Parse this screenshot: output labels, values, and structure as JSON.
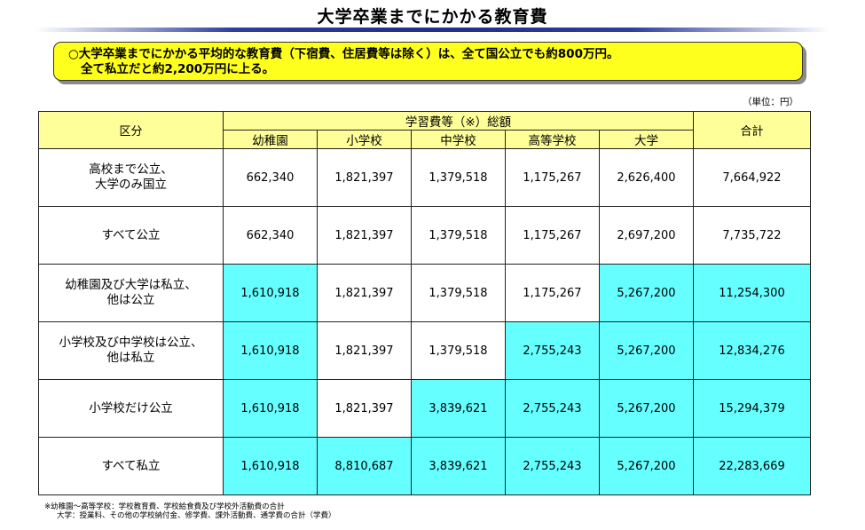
{
  "title": "大学卒業までにかかる教育費",
  "summary": {
    "line1": "○大学卒業までにかかる平均的な教育費（下宿費、住居費等は除く）は、全て国公立でも約800万円。",
    "line2": "全て私立だと約2,200万円に上る。"
  },
  "unit": "（単位：円）",
  "table": {
    "header_category": "区分",
    "header_group": "学習費等（※）総額",
    "header_total": "合計",
    "columns": [
      "幼稚園",
      "小学校",
      "中学校",
      "高等学校",
      "大学"
    ],
    "rows": [
      {
        "label": "高校まで公立、\n大学のみ国立",
        "values": [
          "662,340",
          "1,821,397",
          "1,379,518",
          "1,175,267",
          "2,626,400"
        ],
        "total": "7,664,922"
      },
      {
        "label": "すべて公立",
        "values": [
          "662,340",
          "1,821,397",
          "1,379,518",
          "1,175,267",
          "2,697,200"
        ],
        "total": "7,735,722"
      },
      {
        "label": "幼稚園及び大学は私立、\n他は公立",
        "values": [
          "1,610,918",
          "1,821,397",
          "1,379,518",
          "1,175,267",
          "5,267,200"
        ],
        "total": "11,254,300"
      },
      {
        "label": "小学校及び中学校は公立、\n他は私立",
        "values": [
          "1,610,918",
          "1,821,397",
          "1,379,518",
          "2,755,243",
          "5,267,200"
        ],
        "total": "12,834,276"
      },
      {
        "label": "小学校だけ公立",
        "values": [
          "1,610,918",
          "1,821,397",
          "3,839,621",
          "2,755,243",
          "5,267,200"
        ],
        "total": "15,294,379"
      },
      {
        "label": "すべて私立",
        "values": [
          "1,610,918",
          "8,810,687",
          "3,839,621",
          "2,755,243",
          "5,267,200"
        ],
        "total": "22,283,669"
      }
    ],
    "highlight": [
      [
        false,
        false,
        false,
        false,
        false,
        false
      ],
      [
        false,
        false,
        false,
        false,
        false,
        false
      ],
      [
        true,
        false,
        false,
        false,
        true,
        true
      ],
      [
        true,
        false,
        false,
        true,
        true,
        true
      ],
      [
        true,
        false,
        true,
        true,
        true,
        true
      ],
      [
        true,
        true,
        true,
        true,
        true,
        true
      ]
    ],
    "colors": {
      "header_bg": "#ffff99",
      "highlight_bg": "#66ffff",
      "summary_bg": "#ffff1e"
    }
  },
  "footnotes": [
    "※幼稚園～高等学校：学校教育費、学校給食費及び学校外活動費の合計",
    "大学：授業料、その他の学校納付金、修学費、課外活動費、通学費の合計（学費）"
  ]
}
